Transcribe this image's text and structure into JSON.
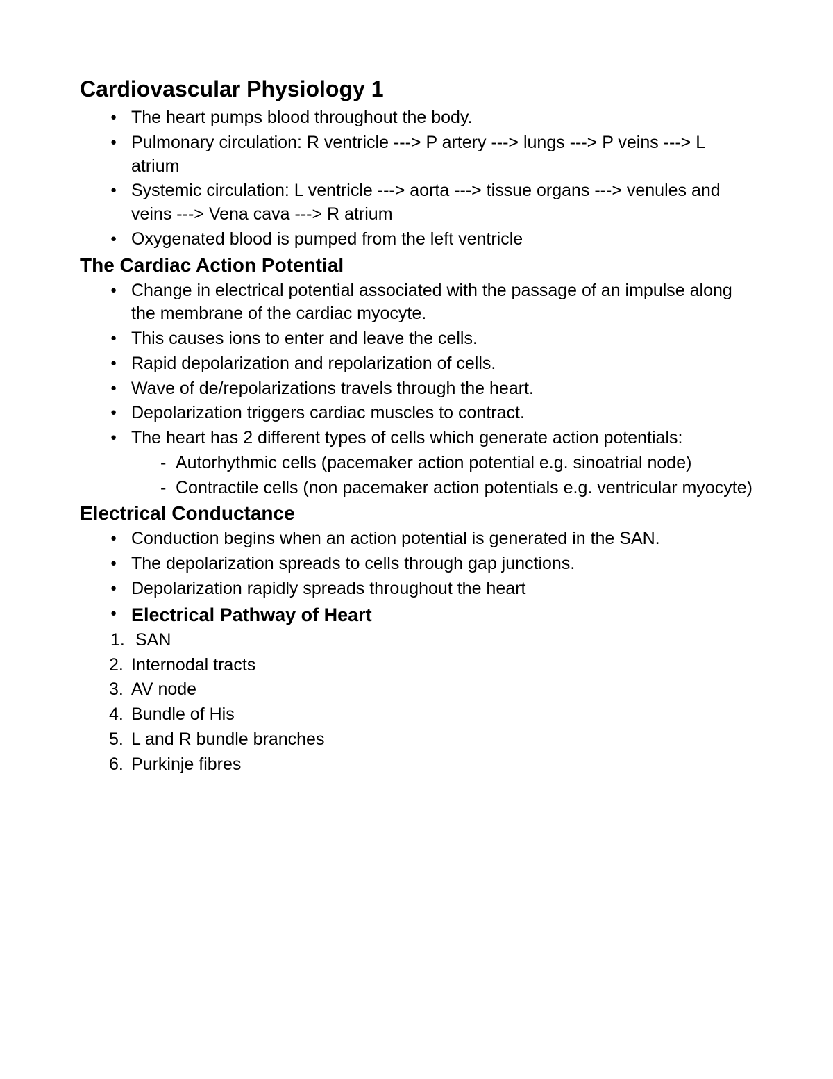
{
  "document": {
    "title": "Cardiovascular Physiology 1",
    "text_color": "#000000",
    "background_color": "#ffffff",
    "title_fontsize": 32,
    "h2_fontsize": 28,
    "body_fontsize": 25,
    "sections": [
      {
        "bullets": [
          "The heart pumps blood throughout the body.",
          "Pulmonary circulation: R ventricle ---> P artery ---> lungs ---> P veins ---> L atrium",
          "Systemic circulation: L ventricle ---> aorta ---> tissue organs ---> venules and veins ---> Vena cava ---> R atrium",
          "Oxygenated blood is pumped from the left ventricle"
        ]
      },
      {
        "heading": "The Cardiac Action Potential",
        "bullets": [
          "Change in electrical potential associated with the passage of an impulse along the membrane of the cardiac myocyte.",
          "This causes ions to enter and leave the cells.",
          "Rapid depolarization and repolarization of cells.",
          "Wave of de/repolarizations travels through the heart.",
          "Depolarization triggers cardiac muscles to contract.",
          "The heart has 2 different types of cells which generate action potentials:"
        ],
        "sub_bullets": [
          "Autorhythmic cells (pacemaker action potential e.g. sinoatrial node)",
          "Contractile cells (non pacemaker action potentials e.g. ventricular myocyte)"
        ]
      },
      {
        "heading": "Electrical Conductance",
        "bullets": [
          "Conduction begins when an action potential is generated in the SAN.",
          "The depolarization spreads to cells through gap junctions.",
          "Depolarization rapidly spreads throughout the heart"
        ],
        "bold_bullet": "Electrical Pathway of Heart",
        "numbered": [
          "SAN",
          "Internodal tracts",
          "AV node",
          "Bundle of His",
          "L and R bundle branches",
          "Purkinje fibres"
        ]
      }
    ]
  }
}
